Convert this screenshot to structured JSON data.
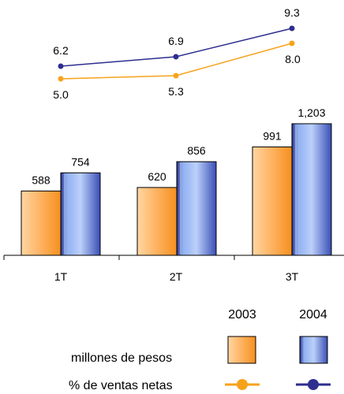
{
  "chart_data": {
    "type": "bar",
    "categories": [
      "1T",
      "2T",
      "3T"
    ],
    "bar_series": [
      {
        "name": "2003",
        "values": [
          588,
          620,
          991
        ],
        "labels": [
          "588",
          "620",
          "991"
        ],
        "color": "#f7941d"
      },
      {
        "name": "2004",
        "values": [
          754,
          856,
          1203
        ],
        "labels": [
          "754",
          "856",
          "1,203"
        ],
        "color": "#2e3192"
      }
    ],
    "line_series": [
      {
        "name": "2003",
        "values": [
          5.0,
          5.3,
          8.0
        ],
        "labels": [
          "5.0",
          "5.3",
          "8.0"
        ],
        "color": "#f7a21b"
      },
      {
        "name": "2004",
        "values": [
          6.2,
          6.9,
          9.3
        ],
        "labels": [
          "6.2",
          "6.9",
          "9.3"
        ],
        "color": "#2e2e8f"
      }
    ],
    "bar_ylim": [
      0,
      1400
    ],
    "line_ylim": [
      4.35,
      9.75
    ],
    "legend": {
      "years": [
        "2003",
        "2004"
      ],
      "bar_label": "millones de pesos",
      "line_label": "% de ventas netas"
    },
    "grid": false
  }
}
